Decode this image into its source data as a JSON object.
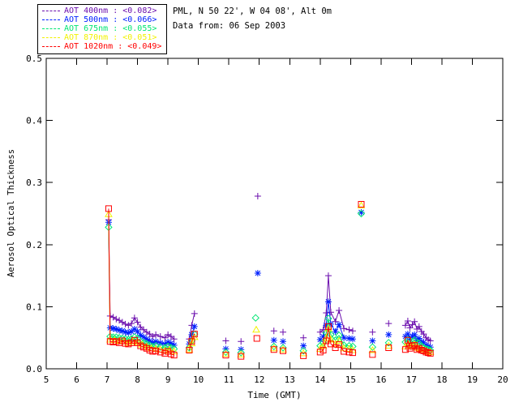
{
  "header": {
    "location": "PML, N 50 22', W 04 08', Alt 0m",
    "date_line": "Data from: 06 Sep 2003"
  },
  "legend": {
    "items": [
      {
        "text": "AOT  400nm : <0.082>",
        "color": "#6A0DAD"
      },
      {
        "text": "AOT  500nm : <0.066>",
        "color": "#0020FF"
      },
      {
        "text": "AOT  675nm : <0.055>",
        "color": "#00E673"
      },
      {
        "text": "AOT  870nm : <0.051>",
        "color": "#F2F200"
      },
      {
        "text": "AOT 1020nm : <0.049>",
        "color": "#FF0000"
      }
    ]
  },
  "chart_data": {
    "type": "line",
    "title": "",
    "xlabel": "Time (GMT)",
    "ylabel": "Aerosol Optical Thickness",
    "xlim": [
      5,
      20
    ],
    "ylim": [
      0.0,
      0.5
    ],
    "xticks": [
      5,
      6,
      7,
      8,
      9,
      10,
      11,
      12,
      13,
      14,
      15,
      16,
      17,
      18,
      19,
      20
    ],
    "yticks": [
      0.0,
      0.1,
      0.2,
      0.3,
      0.4,
      0.5
    ],
    "grid": false,
    "legend_position": "top-left",
    "gap_threshold_hours": 0.2,
    "series": [
      {
        "name": "AOT 400nm",
        "mean_label": "<0.082>",
        "color": "#6A0DAD",
        "marker": "plus",
        "points": [
          [
            7.05,
            0.24
          ],
          [
            7.1,
            0.085
          ],
          [
            7.2,
            0.083
          ],
          [
            7.3,
            0.08
          ],
          [
            7.4,
            0.078
          ],
          [
            7.5,
            0.075
          ],
          [
            7.6,
            0.072
          ],
          [
            7.7,
            0.07
          ],
          [
            7.8,
            0.073
          ],
          [
            7.9,
            0.082
          ],
          [
            8.0,
            0.075
          ],
          [
            8.1,
            0.067
          ],
          [
            8.2,
            0.063
          ],
          [
            8.3,
            0.059
          ],
          [
            8.4,
            0.056
          ],
          [
            8.5,
            0.052
          ],
          [
            8.6,
            0.055
          ],
          [
            8.75,
            0.052
          ],
          [
            8.9,
            0.05
          ],
          [
            9.0,
            0.055
          ],
          [
            9.1,
            0.052
          ],
          [
            9.2,
            0.048
          ],
          [
            9.7,
            0.048
          ],
          [
            9.78,
            0.07
          ],
          [
            9.87,
            0.089
          ],
          [
            10.9,
            0.045
          ],
          [
            11.4,
            0.044
          ],
          [
            11.95,
            0.278
          ],
          [
            12.48,
            0.061
          ],
          [
            12.78,
            0.059
          ],
          [
            13.45,
            0.05
          ],
          [
            14.0,
            0.059
          ],
          [
            14.1,
            0.063
          ],
          [
            14.2,
            0.09
          ],
          [
            14.27,
            0.15
          ],
          [
            14.35,
            0.091
          ],
          [
            14.5,
            0.076
          ],
          [
            14.62,
            0.094
          ],
          [
            14.78,
            0.065
          ],
          [
            14.95,
            0.063
          ],
          [
            15.07,
            0.061
          ],
          [
            15.72,
            0.059
          ],
          [
            16.25,
            0.073
          ],
          [
            16.8,
            0.07
          ],
          [
            16.88,
            0.077
          ],
          [
            16.95,
            0.066
          ],
          [
            17.03,
            0.071
          ],
          [
            17.1,
            0.076
          ],
          [
            17.18,
            0.064
          ],
          [
            17.25,
            0.068
          ],
          [
            17.33,
            0.06
          ],
          [
            17.4,
            0.056
          ],
          [
            17.48,
            0.05
          ],
          [
            17.55,
            0.047
          ],
          [
            17.62,
            0.045
          ]
        ]
      },
      {
        "name": "AOT 500nm",
        "mean_label": "<0.066>",
        "color": "#0020FF",
        "marker": "asterisk",
        "points": [
          [
            7.05,
            0.236
          ],
          [
            7.1,
            0.066
          ],
          [
            7.2,
            0.065
          ],
          [
            7.3,
            0.064
          ],
          [
            7.4,
            0.062
          ],
          [
            7.5,
            0.061
          ],
          [
            7.6,
            0.059
          ],
          [
            7.7,
            0.058
          ],
          [
            7.8,
            0.06
          ],
          [
            7.9,
            0.064
          ],
          [
            8.0,
            0.06
          ],
          [
            8.1,
            0.054
          ],
          [
            8.2,
            0.051
          ],
          [
            8.3,
            0.048
          ],
          [
            8.4,
            0.045
          ],
          [
            8.5,
            0.042
          ],
          [
            8.6,
            0.044
          ],
          [
            8.75,
            0.042
          ],
          [
            8.9,
            0.04
          ],
          [
            9.0,
            0.043
          ],
          [
            9.1,
            0.041
          ],
          [
            9.2,
            0.038
          ],
          [
            9.7,
            0.04
          ],
          [
            9.78,
            0.055
          ],
          [
            9.87,
            0.068
          ],
          [
            10.9,
            0.032
          ],
          [
            11.4,
            0.031
          ],
          [
            11.95,
            0.154
          ],
          [
            12.48,
            0.046
          ],
          [
            12.78,
            0.044
          ],
          [
            13.45,
            0.037
          ],
          [
            14.0,
            0.047
          ],
          [
            14.1,
            0.052
          ],
          [
            14.2,
            0.07
          ],
          [
            14.27,
            0.108
          ],
          [
            14.35,
            0.072
          ],
          [
            14.5,
            0.06
          ],
          [
            14.62,
            0.071
          ],
          [
            14.78,
            0.05
          ],
          [
            14.95,
            0.049
          ],
          [
            15.07,
            0.048
          ],
          [
            15.35,
            0.252
          ],
          [
            15.72,
            0.045
          ],
          [
            16.25,
            0.055
          ],
          [
            16.8,
            0.052
          ],
          [
            16.88,
            0.056
          ],
          [
            16.95,
            0.048
          ],
          [
            17.03,
            0.052
          ],
          [
            17.1,
            0.055
          ],
          [
            17.18,
            0.046
          ],
          [
            17.25,
            0.049
          ],
          [
            17.33,
            0.044
          ],
          [
            17.4,
            0.042
          ],
          [
            17.48,
            0.038
          ],
          [
            17.55,
            0.036
          ],
          [
            17.62,
            0.035
          ]
        ]
      },
      {
        "name": "AOT 675nm",
        "mean_label": "<0.055>",
        "color": "#00E673",
        "marker": "diamond",
        "points": [
          [
            7.05,
            0.228
          ],
          [
            7.1,
            0.052
          ],
          [
            7.2,
            0.051
          ],
          [
            7.3,
            0.051
          ],
          [
            7.4,
            0.05
          ],
          [
            7.5,
            0.049
          ],
          [
            7.6,
            0.048
          ],
          [
            7.7,
            0.047
          ],
          [
            7.8,
            0.048
          ],
          [
            7.9,
            0.051
          ],
          [
            8.0,
            0.049
          ],
          [
            8.1,
            0.044
          ],
          [
            8.2,
            0.042
          ],
          [
            8.3,
            0.04
          ],
          [
            8.4,
            0.038
          ],
          [
            8.5,
            0.036
          ],
          [
            8.6,
            0.037
          ],
          [
            8.75,
            0.035
          ],
          [
            8.9,
            0.034
          ],
          [
            9.0,
            0.036
          ],
          [
            9.1,
            0.034
          ],
          [
            9.2,
            0.032
          ],
          [
            9.7,
            0.034
          ],
          [
            9.78,
            0.045
          ],
          [
            9.87,
            0.056
          ],
          [
            10.9,
            0.027
          ],
          [
            11.4,
            0.026
          ],
          [
            11.88,
            0.082
          ],
          [
            12.48,
            0.036
          ],
          [
            12.78,
            0.034
          ],
          [
            13.45,
            0.029
          ],
          [
            14.0,
            0.037
          ],
          [
            14.1,
            0.042
          ],
          [
            14.2,
            0.058
          ],
          [
            14.27,
            0.081
          ],
          [
            14.35,
            0.055
          ],
          [
            14.5,
            0.046
          ],
          [
            14.62,
            0.054
          ],
          [
            14.78,
            0.038
          ],
          [
            14.95,
            0.037
          ],
          [
            15.07,
            0.036
          ],
          [
            15.35,
            0.25
          ],
          [
            15.72,
            0.035
          ],
          [
            16.25,
            0.042
          ],
          [
            16.8,
            0.043
          ],
          [
            16.88,
            0.047
          ],
          [
            16.95,
            0.04
          ],
          [
            17.03,
            0.044
          ],
          [
            17.1,
            0.046
          ],
          [
            17.18,
            0.038
          ],
          [
            17.25,
            0.041
          ],
          [
            17.33,
            0.036
          ],
          [
            17.4,
            0.034
          ],
          [
            17.48,
            0.032
          ],
          [
            17.55,
            0.031
          ],
          [
            17.62,
            0.03
          ]
        ]
      },
      {
        "name": "AOT 870nm",
        "mean_label": "<0.051>",
        "color": "#F2F200",
        "marker": "triangle",
        "points": [
          [
            7.05,
            0.249
          ],
          [
            7.1,
            0.047
          ],
          [
            7.25,
            0.046
          ],
          [
            7.4,
            0.045
          ],
          [
            7.55,
            0.044
          ],
          [
            7.7,
            0.042
          ],
          [
            7.85,
            0.044
          ],
          [
            8.0,
            0.043
          ],
          [
            8.15,
            0.039
          ],
          [
            8.3,
            0.036
          ],
          [
            8.45,
            0.033
          ],
          [
            8.6,
            0.032
          ],
          [
            8.75,
            0.031
          ],
          [
            8.9,
            0.029
          ],
          [
            9.05,
            0.031
          ],
          [
            9.2,
            0.028
          ],
          [
            9.7,
            0.031
          ],
          [
            9.78,
            0.041
          ],
          [
            9.87,
            0.051
          ],
          [
            10.9,
            0.024
          ],
          [
            11.4,
            0.023
          ],
          [
            11.9,
            0.063
          ],
          [
            12.48,
            0.033
          ],
          [
            12.78,
            0.031
          ],
          [
            13.45,
            0.025
          ],
          [
            14.0,
            0.032
          ],
          [
            14.1,
            0.037
          ],
          [
            14.2,
            0.05
          ],
          [
            14.27,
            0.065
          ],
          [
            14.35,
            0.047
          ],
          [
            14.5,
            0.04
          ],
          [
            14.62,
            0.045
          ],
          [
            14.78,
            0.033
          ],
          [
            14.95,
            0.032
          ],
          [
            15.07,
            0.03
          ],
          [
            15.35,
            0.263
          ],
          [
            15.72,
            0.03
          ],
          [
            16.25,
            0.037
          ],
          [
            16.8,
            0.036
          ],
          [
            16.9,
            0.04
          ],
          [
            17.0,
            0.036
          ],
          [
            17.1,
            0.039
          ],
          [
            17.2,
            0.034
          ],
          [
            17.3,
            0.032
          ],
          [
            17.4,
            0.03
          ],
          [
            17.5,
            0.028
          ],
          [
            17.62,
            0.027
          ]
        ]
      },
      {
        "name": "AOT 1020nm",
        "mean_label": "<0.049>",
        "color": "#FF0000",
        "marker": "square",
        "points": [
          [
            7.05,
            0.258
          ],
          [
            7.1,
            0.044
          ],
          [
            7.2,
            0.043
          ],
          [
            7.3,
            0.044
          ],
          [
            7.4,
            0.042
          ],
          [
            7.5,
            0.045
          ],
          [
            7.6,
            0.041
          ],
          [
            7.7,
            0.04
          ],
          [
            7.8,
            0.042
          ],
          [
            7.9,
            0.046
          ],
          [
            8.0,
            0.042
          ],
          [
            8.1,
            0.037
          ],
          [
            8.2,
            0.035
          ],
          [
            8.3,
            0.033
          ],
          [
            8.4,
            0.03
          ],
          [
            8.5,
            0.028
          ],
          [
            8.6,
            0.029
          ],
          [
            8.75,
            0.027
          ],
          [
            8.9,
            0.025
          ],
          [
            9.0,
            0.028
          ],
          [
            9.1,
            0.024
          ],
          [
            9.2,
            0.022
          ],
          [
            9.7,
            0.03
          ],
          [
            9.78,
            0.044
          ],
          [
            9.87,
            0.056
          ],
          [
            10.9,
            0.022
          ],
          [
            11.4,
            0.02
          ],
          [
            11.92,
            0.049
          ],
          [
            12.48,
            0.031
          ],
          [
            12.78,
            0.029
          ],
          [
            13.45,
            0.021
          ],
          [
            14.0,
            0.027
          ],
          [
            14.1,
            0.03
          ],
          [
            14.2,
            0.045
          ],
          [
            14.27,
            0.068
          ],
          [
            14.35,
            0.04
          ],
          [
            14.5,
            0.034
          ],
          [
            14.62,
            0.039
          ],
          [
            14.78,
            0.028
          ],
          [
            14.95,
            0.027
          ],
          [
            15.07,
            0.026
          ],
          [
            15.35,
            0.265
          ],
          [
            15.72,
            0.023
          ],
          [
            16.25,
            0.034
          ],
          [
            16.8,
            0.031
          ],
          [
            16.88,
            0.046
          ],
          [
            16.95,
            0.033
          ],
          [
            17.03,
            0.036
          ],
          [
            17.1,
            0.038
          ],
          [
            17.18,
            0.031
          ],
          [
            17.25,
            0.033
          ],
          [
            17.33,
            0.03
          ],
          [
            17.4,
            0.029
          ],
          [
            17.48,
            0.027
          ],
          [
            17.55,
            0.026
          ],
          [
            17.62,
            0.025
          ]
        ]
      }
    ]
  }
}
